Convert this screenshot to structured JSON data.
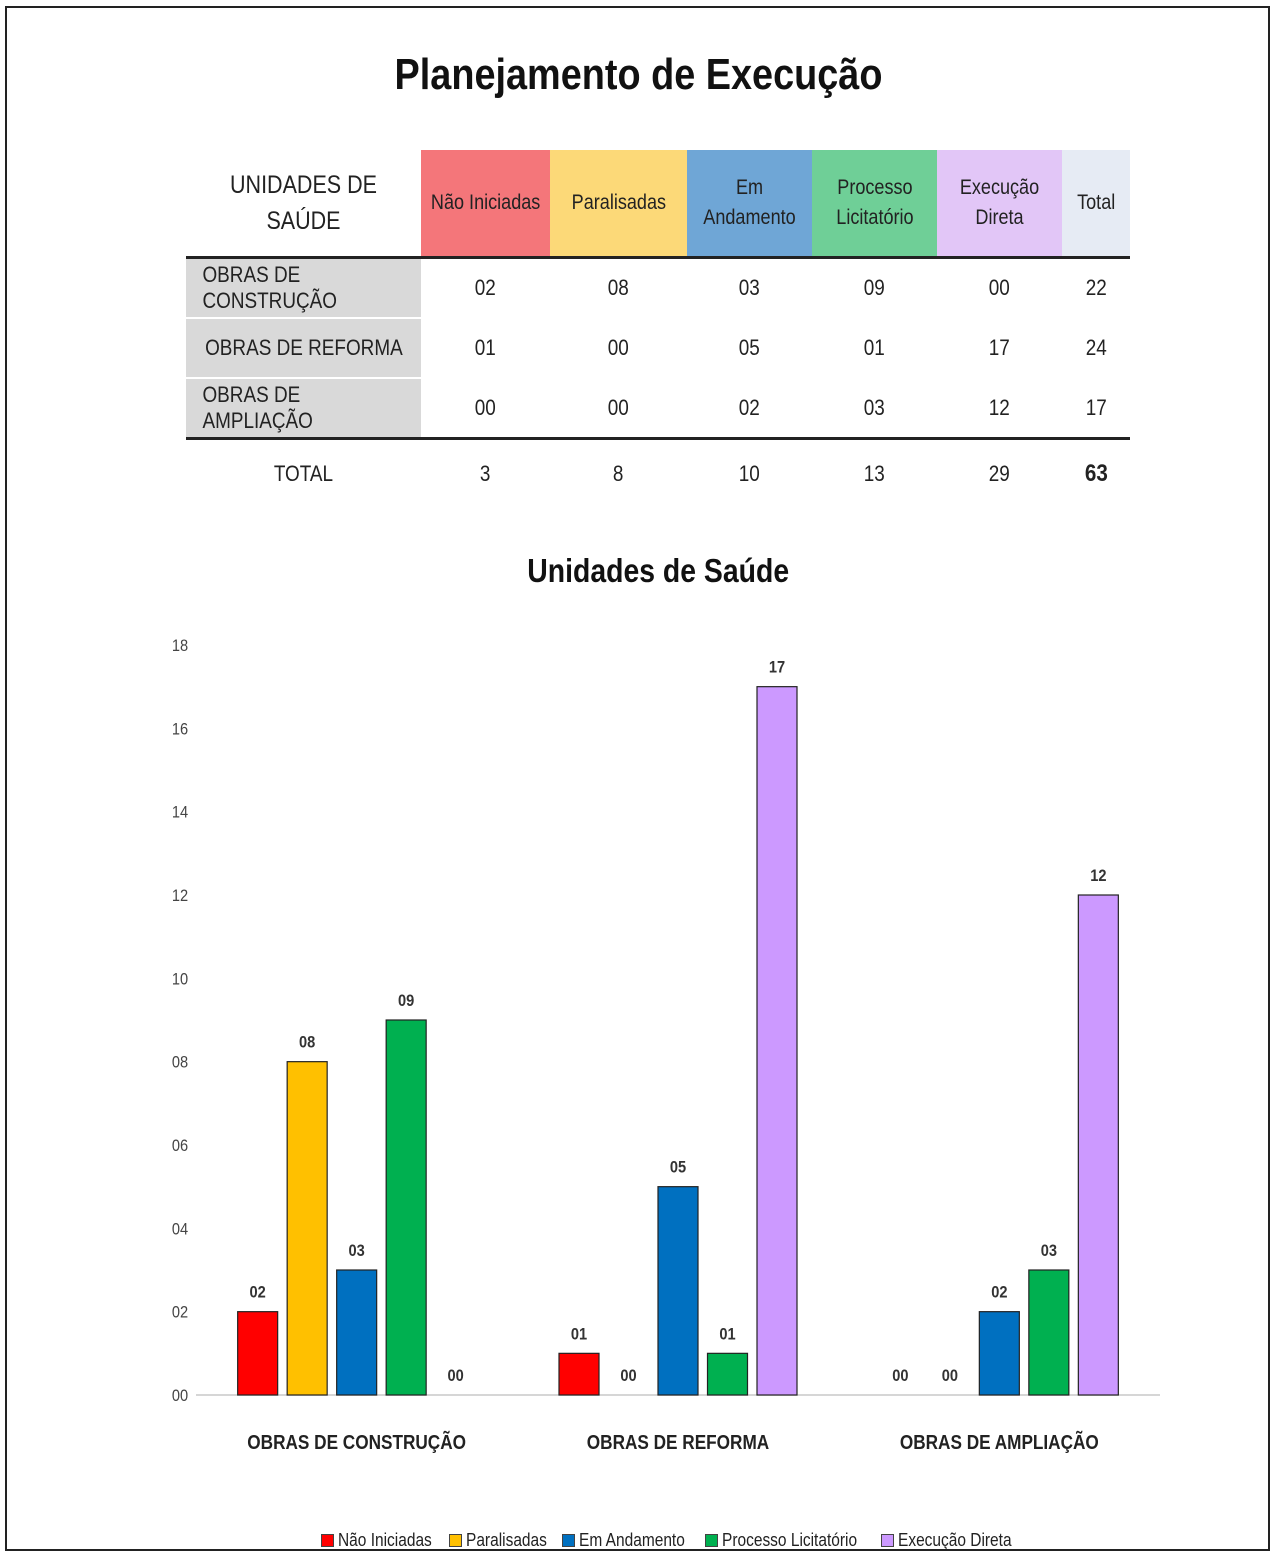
{
  "title": "Planejamento de Execução",
  "table": {
    "corner_header": "UNIDADES DE SAÚDE",
    "columns": [
      {
        "label": "Não Iniciadas",
        "color": "#f4767a"
      },
      {
        "label": "Paralisadas",
        "color": "#fcd978"
      },
      {
        "label": "Em Andamento",
        "color": "#6fa6d6"
      },
      {
        "label": "Processo\nLicitatório",
        "color": "#6fcf97"
      },
      {
        "label": "Execução Direta",
        "color": "#e2c6f7"
      },
      {
        "label": "Total",
        "color": "#e6ebf4"
      }
    ],
    "rows": [
      {
        "label": "OBRAS DE CONSTRUÇÃO",
        "values": [
          "02",
          "08",
          "03",
          "09",
          "00",
          "22"
        ]
      },
      {
        "label": "OBRAS DE REFORMA",
        "values": [
          "01",
          "00",
          "05",
          "01",
          "17",
          "24"
        ]
      },
      {
        "label": "OBRAS DE AMPLIAÇÃO",
        "values": [
          "00",
          "00",
          "02",
          "03",
          "12",
          "17"
        ]
      }
    ],
    "total_row": {
      "label": "TOTAL",
      "values": [
        "3",
        "8",
        "10",
        "13",
        "29",
        "63"
      ]
    }
  },
  "chart_data": {
    "type": "bar",
    "title": "Unidades de Saúde",
    "categories": [
      "OBRAS DE CONSTRUÇÃO",
      "OBRAS DE REFORMA",
      "OBRAS DE AMPLIAÇÃO"
    ],
    "series": [
      {
        "name": "Não Iniciadas",
        "color": "#ff0000",
        "values": [
          2,
          1,
          0
        ],
        "labels": [
          "02",
          "01",
          "00"
        ]
      },
      {
        "name": "Paralisadas",
        "color": "#ffc000",
        "values": [
          8,
          0,
          0
        ],
        "labels": [
          "08",
          "00",
          "00"
        ]
      },
      {
        "name": "Em Andamento",
        "color": "#0070c0",
        "values": [
          3,
          5,
          2
        ],
        "labels": [
          "03",
          "05",
          "02"
        ]
      },
      {
        "name": "Processo Licitatório",
        "color": "#00b050",
        "values": [
          9,
          1,
          3
        ],
        "labels": [
          "09",
          "01",
          "03"
        ]
      },
      {
        "name": "Execução Direta",
        "color": "#cc99ff",
        "values": [
          0,
          17,
          12
        ],
        "labels": [
          "00",
          "17",
          "12"
        ]
      }
    ],
    "ylim": [
      0,
      18
    ],
    "yticks": [
      "00",
      "02",
      "04",
      "06",
      "08",
      "10",
      "12",
      "14",
      "16",
      "18"
    ],
    "grid": false,
    "legend": "bottom"
  }
}
